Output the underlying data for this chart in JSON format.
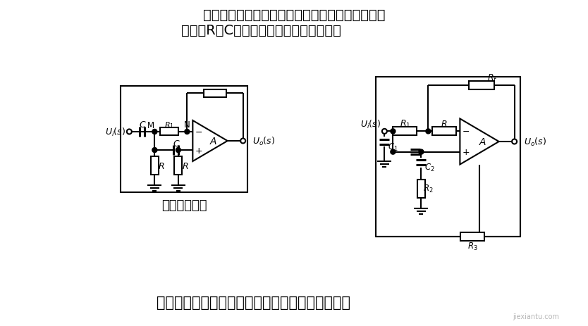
{
  "bg_color": "#ffffff",
  "title_line1": "高通滤波电路与低通滤波电路具有对偶性，把低通",
  "title_line2": "电路中R和C互换即可得到高通滤波电路。",
  "bottom_text": "将高通和低通电路适当组合即可得到带通滤波电路",
  "label_left": "实用二阶高通",
  "figsize": [
    8.34,
    4.64
  ],
  "dpi": 100,
  "text_color": "#000000",
  "line_color": "#000000"
}
